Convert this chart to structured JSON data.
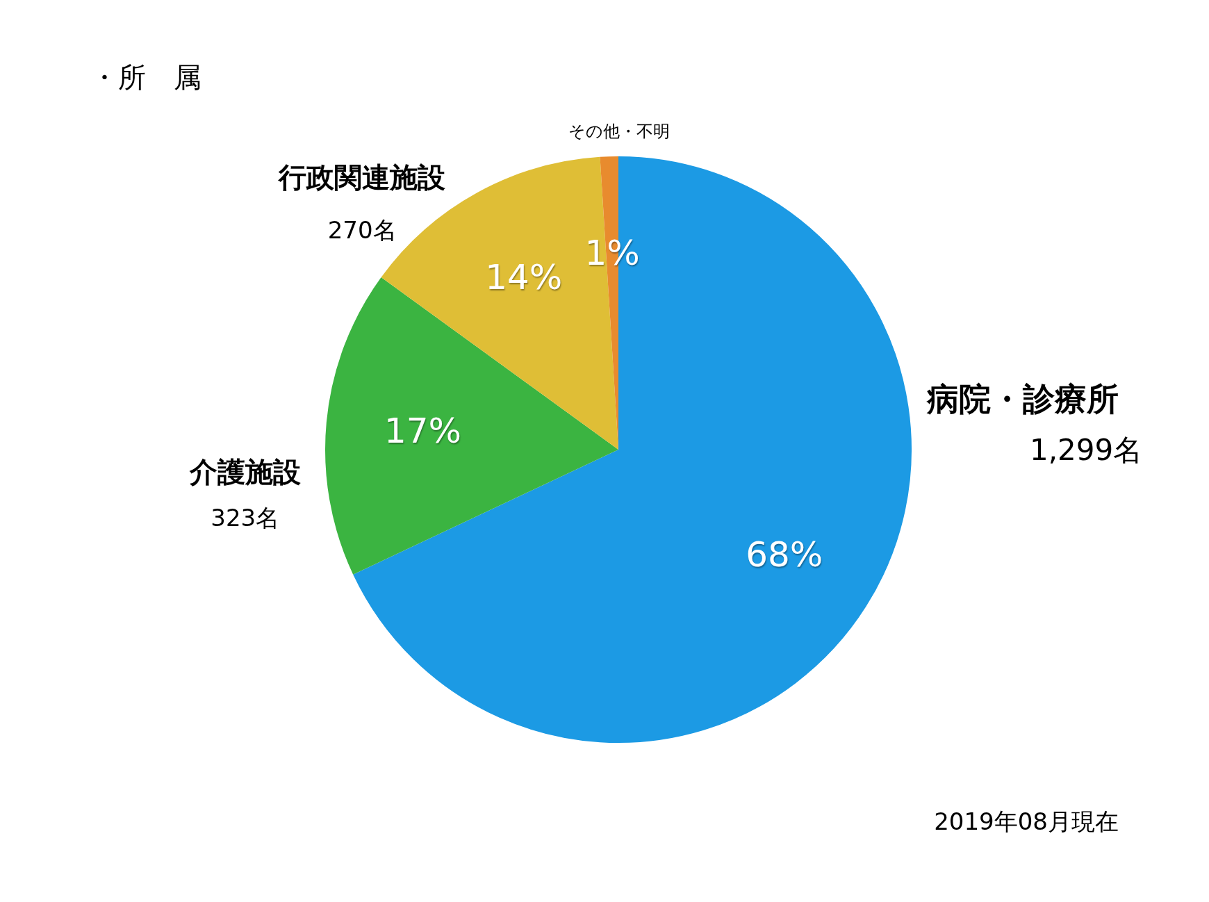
{
  "chart_data": {
    "type": "pie",
    "title": "・所　属",
    "categories": [
      "病院・診療所",
      "介護施設",
      "行政関連施設",
      "その他・不明"
    ],
    "values": [
      68,
      17,
      14,
      1
    ],
    "colors": [
      "#1c9ae4",
      "#3bb441",
      "#dfbe36",
      "#e88b2e"
    ],
    "value_labels": [
      "68%",
      "17%",
      "14%",
      "1%"
    ],
    "annotations": [
      {
        "text": "1,299名",
        "x": "病院・診療所"
      },
      {
        "text": "323名",
        "x": "介護施設"
      },
      {
        "text": "270名",
        "x": "行政関連施設"
      },
      "2019年08月現在"
    ]
  }
}
